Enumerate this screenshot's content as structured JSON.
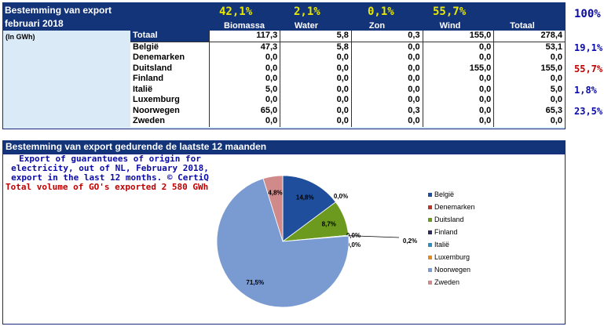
{
  "table": {
    "title_line1": "Bestemming van export",
    "title_line2": "februari 2018",
    "unit": "(In GWh)",
    "columns": [
      "Biomassa",
      "Water",
      "Zon",
      "Wind",
      "Totaal"
    ],
    "column_pcts": [
      "42,1%",
      "2,1%",
      "0,1%",
      "55,7%"
    ],
    "total_pct": "100%",
    "rows": [
      {
        "name": "Totaal",
        "values": [
          "117,3",
          "5,8",
          "0,3",
          "155,0",
          "278,4"
        ],
        "pct": ""
      },
      {
        "name": "België",
        "values": [
          "47,3",
          "5,8",
          "0,0",
          "0,0",
          "53,1"
        ],
        "pct": "19,1%"
      },
      {
        "name": "Denemarken",
        "values": [
          "0,0",
          "0,0",
          "0,0",
          "0,0",
          "0,0"
        ],
        "pct": ""
      },
      {
        "name": "Duitsland",
        "values": [
          "0,0",
          "0,0",
          "0,0",
          "155,0",
          "155,0"
        ],
        "pct": "55,7%"
      },
      {
        "name": "Finland",
        "values": [
          "0,0",
          "0,0",
          "0,0",
          "0,0",
          "0,0"
        ],
        "pct": ""
      },
      {
        "name": "Italië",
        "values": [
          "5,0",
          "0,0",
          "0,0",
          "0,0",
          "5,0"
        ],
        "pct": "1,8%"
      },
      {
        "name": "Luxemburg",
        "values": [
          "0,0",
          "0,0",
          "0,0",
          "0,0",
          "0,0"
        ],
        "pct": ""
      },
      {
        "name": "Noorwegen",
        "values": [
          "65,0",
          "0,0",
          "0,3",
          "0,0",
          "65,3"
        ],
        "pct": "23,5%"
      },
      {
        "name": "Zweden",
        "values": [
          "0,0",
          "0,0",
          "0,0",
          "0,0",
          "0,0"
        ],
        "pct": ""
      }
    ],
    "pct_colors": {
      "default": "#0a0aa8",
      "highlight": "#c00000"
    }
  },
  "pie_section": {
    "title": "Bestemming van export gedurende de laatste 12 maanden",
    "note_lines": [
      "Export of guarantuees of origin for",
      "electricity, out of NL, February 2018,",
      "export in the last 12 months. © CertiQ"
    ],
    "note_red": "Total volume of GO's exported 2 580 GWh"
  },
  "chart_data": {
    "type": "pie",
    "title": "Bestemming van export gedurende de laatste 12 maanden",
    "slices": [
      {
        "name": "België",
        "value": 14.8,
        "label": "14,8%",
        "color": "#1f4e9c"
      },
      {
        "name": "Denemarken",
        "value": 0.0,
        "label": "0,0%",
        "color": "#b53a2a"
      },
      {
        "name": "Duitsland",
        "value": 8.7,
        "label": "8,7%",
        "color": "#6b9a1e"
      },
      {
        "name": "Finland",
        "value": 0.0,
        "label": "0,0%",
        "color": "#2c2c5c"
      },
      {
        "name": "Italië",
        "value": 0.2,
        "label": "0,2%",
        "color": "#2f8fc0"
      },
      {
        "name": "Luxemburg",
        "value": 0.0,
        "label": "0,0%",
        "color": "#e08a2a"
      },
      {
        "name": "Noorwegen",
        "value": 71.5,
        "label": "71,5%",
        "color": "#7a9bd1"
      },
      {
        "name": "Zweden",
        "value": 4.8,
        "label": "4,8%",
        "color": "#d08a8a"
      }
    ],
    "legend_position": "right"
  }
}
